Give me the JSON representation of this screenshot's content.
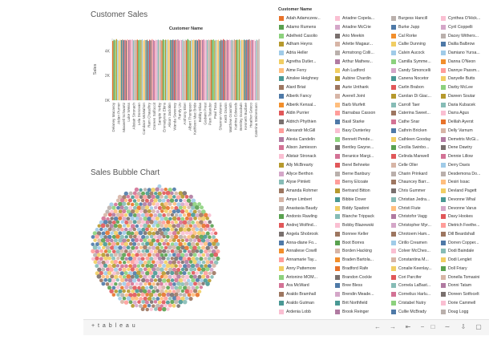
{
  "dashboard": {
    "sales_title": "Customer Sales",
    "bubble_title": "Sales Bubble Chart"
  },
  "chart_data": [
    {
      "type": "bar",
      "title": "Customer Name",
      "ylabel": "Sales",
      "yticks": [
        "4K",
        "2K",
        "0K"
      ],
      "ylim": [
        0,
        5000
      ],
      "categories": [
        "Delaney Macavoy",
        "Aidan Purner",
        "Maxwell Schwartz",
        "Luke Weiss",
        "Alistair Stronach",
        "Lela Donovan",
        "Candace McMahon",
        "Ram Chaudhry",
        "Doreen Solfoccit",
        "Sample Yerby",
        "Emmalynne Ekins",
        "Alison Jaclobin",
        "Wanda Sweeney",
        "Randy Liu",
        "Anthony Eker",
        "Albert Thompson",
        "Kathleen Mac Bride",
        "Bobby Elias",
        "Godwin Prest",
        "Pam Tsiandor",
        "Paul Tosa",
        "Shannon Warren",
        "Keith Dranin",
        "Matthew Grasmith",
        "Katrina Edwards",
        "Bentley Goodwin",
        "Kenneth Buzbee",
        "Heather Grieco",
        "Caterina Steinemann"
      ],
      "values": [
        4800,
        4900,
        4850,
        4950,
        4880,
        4820,
        4900,
        4870,
        4910,
        4860,
        4890,
        4840,
        4930,
        4870,
        4900,
        4880,
        4920,
        4850,
        4890,
        4870,
        4910,
        4860,
        4900,
        4880,
        4930,
        4840,
        4890,
        4870,
        4900
      ]
    },
    {
      "type": "scatter",
      "title": "Sales Bubble Chart",
      "series": [
        {
          "values": []
        }
      ]
    }
  ],
  "legend": {
    "title": "Customer Name",
    "columns": [
      [
        {
          "name": "Adah Adamczew...",
          "color": "#e8722a"
        },
        {
          "name": "Adamo Rumens",
          "color": "#59a14f"
        },
        {
          "name": "Adelheid Casolio",
          "color": "#8cd17d"
        },
        {
          "name": "Adham Heyns",
          "color": "#b6992d"
        },
        {
          "name": "Adria Heller",
          "color": "#a0cbe8"
        },
        {
          "name": "Agretha Dutler...",
          "color": "#f1ce63"
        },
        {
          "name": "Aime Ferry",
          "color": "#ffbe7d"
        },
        {
          "name": "Ainslee Heighney",
          "color": "#499894"
        },
        {
          "name": "Alard Briat",
          "color": "#9d7660"
        },
        {
          "name": "Alberik Fancy",
          "color": "#4e79a7"
        },
        {
          "name": "Alberik Kensal...",
          "color": "#f28e2b"
        },
        {
          "name": "Aldin Purrier",
          "color": "#e15759"
        },
        {
          "name": "Aldrich Phythien",
          "color": "#79706e"
        },
        {
          "name": "Alexandr McGill",
          "color": "#ff9d9a"
        },
        {
          "name": "Alexia Candelin",
          "color": "#b07aa1"
        },
        {
          "name": "Alison Jamieson",
          "color": "#d37295"
        },
        {
          "name": "Alistair Stronack",
          "color": "#fabfd2"
        },
        {
          "name": "Ally McBrearty",
          "color": "#b6992d"
        },
        {
          "name": "Allyce Berthon",
          "color": "#d4a6c8"
        },
        {
          "name": "Alyse Pimlett",
          "color": "#86bcb6"
        },
        {
          "name": "Amanda Rohmer",
          "color": "#9d7660"
        },
        {
          "name": "Amye Limbert",
          "color": "#d7b5a6"
        },
        {
          "name": "Anastasia Baudy",
          "color": "#bab0ac"
        },
        {
          "name": "Andonis Rawling",
          "color": "#59a14f"
        },
        {
          "name": "Andrej Wolfind...",
          "color": "#e15759"
        },
        {
          "name": "Angela Shobrook",
          "color": "#79706e"
        },
        {
          "name": "Anna-diane Fo...",
          "color": "#4e79a7"
        },
        {
          "name": "Annaliese Cowill",
          "color": "#f28e2b"
        },
        {
          "name": "Annamarie Tay...",
          "color": "#ff9d9a"
        },
        {
          "name": "Anny Pattemore",
          "color": "#f1ce63"
        },
        {
          "name": "Antonino MOM...",
          "color": "#8cd17d"
        },
        {
          "name": "Ara McWard",
          "color": "#d37295"
        },
        {
          "name": "Araldo Bramhall",
          "color": "#9d7660"
        },
        {
          "name": "Araldo Gutman",
          "color": "#499894"
        },
        {
          "name": "Ardenia Lobb",
          "color": "#fabfd2"
        }
      ],
      [
        {
          "name": "Ariadne Copela...",
          "color": "#fabfd2"
        },
        {
          "name": "Ariadne McCrie",
          "color": "#d4a6c8"
        },
        {
          "name": "Ario Meekin",
          "color": "#79706e"
        },
        {
          "name": "Arlette Magaur...",
          "color": "#d7b5a6"
        },
        {
          "name": "Armstrong Colli...",
          "color": "#bab0ac"
        },
        {
          "name": "Arthur Mathew...",
          "color": "#b07aa1"
        },
        {
          "name": "Ash Ludford",
          "color": "#f1ce63"
        },
        {
          "name": "Aubine Chardin",
          "color": "#b6992d"
        },
        {
          "name": "Aurie Unthank",
          "color": "#9d7660"
        },
        {
          "name": "Averell Joint",
          "color": "#d7b5a6"
        },
        {
          "name": "Barb Murfett",
          "color": "#ffbe7d"
        },
        {
          "name": "Barnabas Casson",
          "color": "#ff9d9a"
        },
        {
          "name": "Basil Starke",
          "color": "#4e79a7"
        },
        {
          "name": "Baxy Dunterley",
          "color": "#fabfd2"
        },
        {
          "name": "Bennett Pende...",
          "color": "#8cd17d"
        },
        {
          "name": "Bentley Gwyne...",
          "color": "#79706e"
        },
        {
          "name": "Beranice Margi...",
          "color": "#d37295"
        },
        {
          "name": "Berel Behneke",
          "color": "#e15759"
        },
        {
          "name": "Berne Banbury",
          "color": "#bab0ac"
        },
        {
          "name": "Berny Elcoate",
          "color": "#ff9d9a"
        },
        {
          "name": "Bertrand Bitton",
          "color": "#b6992d"
        },
        {
          "name": "Bibbie Dover",
          "color": "#499894"
        },
        {
          "name": "Biddy Spadoni",
          "color": "#f1ce63"
        },
        {
          "name": "Blanche Trippack",
          "color": "#86bcb6"
        },
        {
          "name": "Bobby Blazewski",
          "color": "#fabfd2"
        },
        {
          "name": "Bonnee Keller",
          "color": "#9d7660"
        },
        {
          "name": "Boot Borres",
          "color": "#59a14f"
        },
        {
          "name": "Borden Hacking",
          "color": "#d7b5a6"
        },
        {
          "name": "Braden Bartola...",
          "color": "#f28e2b"
        },
        {
          "name": "Bradford Rafe",
          "color": "#e8722a"
        },
        {
          "name": "Brandon Cockle",
          "color": "#79706e"
        },
        {
          "name": "Bree Bless",
          "color": "#4e79a7"
        },
        {
          "name": "Brendin Meade...",
          "color": "#d4a6c8"
        },
        {
          "name": "Brit Northfield",
          "color": "#499894"
        },
        {
          "name": "Brook Reinger",
          "color": "#b07aa1"
        }
      ],
      [
        {
          "name": "Burgess Hancill",
          "color": "#bab0ac"
        },
        {
          "name": "Burke Jupp",
          "color": "#4e79a7"
        },
        {
          "name": "Cal Rorke",
          "color": "#f28e2b"
        },
        {
          "name": "Callie Dunning",
          "color": "#f1ce63"
        },
        {
          "name": "Calvin Aucock",
          "color": "#a0cbe8"
        },
        {
          "name": "Camilla Symme...",
          "color": "#8cd17d"
        },
        {
          "name": "Candy Simoncelli",
          "color": "#d4a6c8"
        },
        {
          "name": "Canena Nocetor",
          "color": "#499894"
        },
        {
          "name": "Carlin Brabon",
          "color": "#e15759"
        },
        {
          "name": "Carolan Di Giac...",
          "color": "#b6992d"
        },
        {
          "name": "Carroll Taer",
          "color": "#86bcb6"
        },
        {
          "name": "Caterina Sweet...",
          "color": "#9d7660"
        },
        {
          "name": "Cathe Snar",
          "color": "#d37295"
        },
        {
          "name": "Cathrin Bricken",
          "color": "#4e79a7"
        },
        {
          "name": "Cathleen Gooday",
          "color": "#f1ce63"
        },
        {
          "name": "Cecilia Swinbo...",
          "color": "#59a14f"
        },
        {
          "name": "Celinda Manwell",
          "color": "#e15759"
        },
        {
          "name": "Celle Oller",
          "color": "#d7b5a6"
        },
        {
          "name": "Charin Prinkard",
          "color": "#bab0ac"
        },
        {
          "name": "Chauncey Barr...",
          "color": "#9d7660"
        },
        {
          "name": "Chris Gummer",
          "color": "#79706e"
        },
        {
          "name": "Christian Jedra...",
          "color": "#86bcb6"
        },
        {
          "name": "Christi Fiute",
          "color": "#ffbe7d"
        },
        {
          "name": "Christofor Vagg",
          "color": "#b07aa1"
        },
        {
          "name": "Christopher Myr...",
          "color": "#d4a6c8"
        },
        {
          "name": "Chrotoem Ham...",
          "color": "#9d7660"
        },
        {
          "name": "Cirillo Creamen",
          "color": "#a0cbe8"
        },
        {
          "name": "Colver McChes...",
          "color": "#fabfd2"
        },
        {
          "name": "Constantina M...",
          "color": "#d7b5a6"
        },
        {
          "name": "Conalie Keenlay...",
          "color": "#f1ce63"
        },
        {
          "name": "Cori Parcifer",
          "color": "#e15759"
        },
        {
          "name": "Cornela LaBast...",
          "color": "#86bcb6"
        },
        {
          "name": "Cornelius Harlu...",
          "color": "#d37295"
        },
        {
          "name": "Cristabel Nutry",
          "color": "#8cd17d"
        },
        {
          "name": "Cullie McBrady",
          "color": "#4e79a7"
        }
      ],
      [
        {
          "name": "Cynthea O'Hick...",
          "color": "#fabfd2"
        },
        {
          "name": "Cyril Coppelli",
          "color": "#d4a6c8"
        },
        {
          "name": "Dacey Withers...",
          "color": "#bab0ac"
        },
        {
          "name": "Dalila Balbrow",
          "color": "#4e79a7"
        },
        {
          "name": "Damiano Yursa...",
          "color": "#a0cbe8"
        },
        {
          "name": "Danna O'Neon",
          "color": "#f28e2b"
        },
        {
          "name": "Dannye Passm...",
          "color": "#ff9d9a"
        },
        {
          "name": "Danyelle Butts",
          "color": "#f1ce63"
        },
        {
          "name": "Darby McLee",
          "color": "#8cd17d"
        },
        {
          "name": "Dareen Soutar",
          "color": "#b6992d"
        },
        {
          "name": "Daria Kubacek",
          "color": "#86bcb6"
        },
        {
          "name": "Darra Agus",
          "color": "#fabfd2"
        },
        {
          "name": "Delilah Ayerst",
          "color": "#e8722a"
        },
        {
          "name": "Delly Varnum",
          "color": "#d7b5a6"
        },
        {
          "name": "Demetris McGi...",
          "color": "#b07aa1"
        },
        {
          "name": "Dene Dawtry",
          "color": "#79706e"
        },
        {
          "name": "Dennie Lillow",
          "color": "#d37295"
        },
        {
          "name": "Derry Davis",
          "color": "#a0cbe8"
        },
        {
          "name": "Desdemona Do...",
          "color": "#bab0ac"
        },
        {
          "name": "Desiri Issac",
          "color": "#ffbe7d"
        },
        {
          "name": "Devland Pagett",
          "color": "#f1ce63"
        },
        {
          "name": "Devonne Whal",
          "color": "#499894"
        },
        {
          "name": "Devonne Varus",
          "color": "#d4a6c8"
        },
        {
          "name": "Davy Hookes",
          "color": "#e15759"
        },
        {
          "name": "Dietrich Feethe...",
          "color": "#ff9d9a"
        },
        {
          "name": "Dill Beardshall",
          "color": "#9d7660"
        },
        {
          "name": "Dorren Copper...",
          "color": "#4e79a7"
        },
        {
          "name": "Dodi Baindale",
          "color": "#86bcb6"
        },
        {
          "name": "Dodi Lenglet",
          "color": "#f1ce63"
        },
        {
          "name": "Doll Friary",
          "color": "#59a14f"
        },
        {
          "name": "Donella Tomasini",
          "color": "#d7b5a6"
        },
        {
          "name": "Donni Tatam",
          "color": "#b07aa1"
        },
        {
          "name": "Doreen Sotfocelt",
          "color": "#79706e"
        },
        {
          "name": "Dorie Cammell",
          "color": "#fabfd2"
        },
        {
          "name": "Doug Logg",
          "color": "#bab0ac"
        }
      ]
    ]
  },
  "footer": {
    "logo": "+ t a b l e a u",
    "icons": [
      "undo-icon",
      "redo-icon",
      "revert-icon",
      "pause-icon",
      "view-icon",
      "share-icon",
      "download-icon",
      "fullscreen-icon"
    ]
  }
}
